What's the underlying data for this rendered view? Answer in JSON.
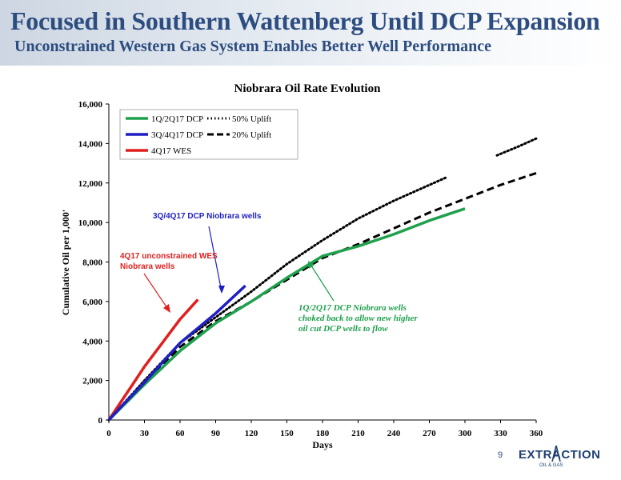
{
  "slide": {
    "title": "Focused in Southern Wattenberg Until DCP Expansion",
    "subtitle": "Unconstrained Western Gas System Enables Better Well Performance",
    "page_number": "9",
    "logo_text": "EXTRACTION",
    "logo_subtext": "OIL & GAS"
  },
  "colors": {
    "header_text": "#2d4d80",
    "green": "#1fa04d",
    "blue": "#1f1fc4",
    "red": "#e01f1f",
    "black": "#000000"
  },
  "chart_data": {
    "type": "line",
    "title": "Niobrara Oil Rate Evolution",
    "xlabel": "Days",
    "ylabel": "Cumulative Oil per 1,000'",
    "xlim": [
      0,
      360
    ],
    "ylim": [
      0,
      16000
    ],
    "xticks": [
      0,
      30,
      60,
      90,
      120,
      150,
      180,
      210,
      240,
      270,
      300,
      330,
      360
    ],
    "yticks": [
      0,
      2000,
      4000,
      6000,
      8000,
      10000,
      12000,
      14000,
      16000
    ],
    "ytick_labels": [
      "0",
      "2,000",
      "4,000",
      "6,000",
      "8,000",
      "10,000",
      "12,000",
      "14,000",
      "16,000"
    ],
    "grid": false,
    "legend_placement": "top-left",
    "series": [
      {
        "name": "1Q/2Q17 DCP",
        "color": "#1fa04d",
        "style": "solid",
        "x": [
          0,
          10,
          30,
          60,
          90,
          120,
          150,
          180,
          210,
          240,
          270,
          300
        ],
        "y": [
          0,
          600,
          1800,
          3500,
          4900,
          6000,
          7200,
          8300,
          8800,
          9400,
          10100,
          10700
        ]
      },
      {
        "name": "3Q/4Q17 DCP",
        "color": "#1f1fc4",
        "style": "solid",
        "x": [
          0,
          10,
          30,
          60,
          90,
          115
        ],
        "y": [
          0,
          650,
          1900,
          3900,
          5400,
          6800
        ]
      },
      {
        "name": "4Q17 WES",
        "color": "#e01f1f",
        "style": "solid",
        "x": [
          0,
          10,
          20,
          30,
          45,
          60,
          75
        ],
        "y": [
          0,
          900,
          1800,
          2700,
          3900,
          5100,
          6100
        ]
      },
      {
        "name": "50% Uplift",
        "color": "#000000",
        "style": "dotted",
        "segments": [
          {
            "x": [
              0,
              30,
              60,
              90,
              120,
              150,
              180,
              210,
              240,
              270,
              285
            ],
            "y": [
              0,
              2000,
              3900,
              5200,
              6500,
              7900,
              9100,
              10200,
              11100,
              11900,
              12300
            ]
          },
          {
            "x": [
              327,
              345,
              360
            ],
            "y": [
              13400,
              13850,
              14250
            ]
          }
        ]
      },
      {
        "name": "20% Uplift",
        "color": "#000000",
        "style": "dashed",
        "x": [
          0,
          30,
          60,
          90,
          120,
          150,
          180,
          210,
          240,
          270,
          300,
          330,
          360
        ],
        "y": [
          0,
          1800,
          3700,
          5000,
          6000,
          7100,
          8200,
          8900,
          9700,
          10500,
          11200,
          11900,
          12500
        ]
      }
    ],
    "annotations": [
      {
        "text_lines": [
          "3Q/4Q17 DCP Niobrara wells"
        ],
        "color": "#1f1fc4"
      },
      {
        "text_lines": [
          "4Q17 unconstrained WES",
          "Niobrara wells"
        ],
        "color": "#e01f1f"
      },
      {
        "text_lines": [
          "1Q/2Q17 DCP Niobrara wells",
          "choked back to allow new higher",
          "oil cut DCP wells to flow"
        ],
        "color": "#1fa04d"
      }
    ]
  }
}
